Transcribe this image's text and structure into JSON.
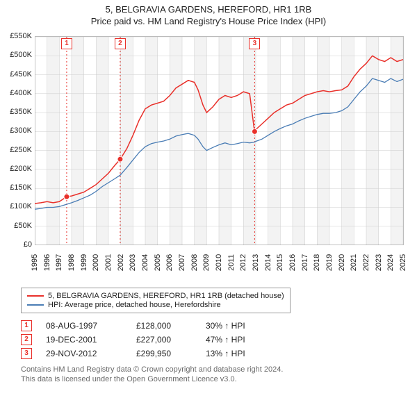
{
  "title": "5, BELGRAVIA GARDENS, HEREFORD, HR1 1RB",
  "subtitle": "Price paid vs. HM Land Registry's House Price Index (HPI)",
  "chart": {
    "type": "line",
    "background_color": "#ffffff",
    "grid_color": "#cccccc",
    "plot_border_color": "#bbbbbb",
    "ylim": [
      0,
      550
    ],
    "ytick_step": 50,
    "y_tick_labels": [
      "£0",
      "£50K",
      "£100K",
      "£150K",
      "£200K",
      "£250K",
      "£300K",
      "£350K",
      "£400K",
      "£450K",
      "£500K",
      "£550K"
    ],
    "xlim": [
      1995,
      2025
    ],
    "x_tick_labels": [
      "1995",
      "1996",
      "1997",
      "1998",
      "1999",
      "2000",
      "2001",
      "2002",
      "2003",
      "2004",
      "2005",
      "2006",
      "2007",
      "2008",
      "2009",
      "2010",
      "2011",
      "2012",
      "2013",
      "2014",
      "2015",
      "2016",
      "2017",
      "2018",
      "2019",
      "2020",
      "2021",
      "2022",
      "2023",
      "2024",
      "2025"
    ],
    "label_fontsize": 11,
    "title_fontsize": 13,
    "series": [
      {
        "name": "property",
        "label": "5, BELGRAVIA GARDENS, HEREFORD, HR1 1RB (detached house)",
        "color": "#e9302a",
        "line_width": 1.5,
        "data": [
          [
            1995.0,
            110
          ],
          [
            1995.5,
            112
          ],
          [
            1996.0,
            115
          ],
          [
            1996.5,
            112
          ],
          [
            1997.0,
            115
          ],
          [
            1997.6,
            128
          ],
          [
            1998.0,
            130
          ],
          [
            1998.5,
            135
          ],
          [
            1999.0,
            140
          ],
          [
            1999.5,
            150
          ],
          [
            2000.0,
            160
          ],
          [
            2000.5,
            175
          ],
          [
            2001.0,
            190
          ],
          [
            2001.5,
            210
          ],
          [
            2001.96,
            227
          ],
          [
            2002.5,
            255
          ],
          [
            2003.0,
            290
          ],
          [
            2003.5,
            330
          ],
          [
            2004.0,
            360
          ],
          [
            2004.5,
            370
          ],
          [
            2005.0,
            375
          ],
          [
            2005.5,
            380
          ],
          [
            2006.0,
            395
          ],
          [
            2006.5,
            415
          ],
          [
            2007.0,
            425
          ],
          [
            2007.5,
            435
          ],
          [
            2008.0,
            430
          ],
          [
            2008.3,
            410
          ],
          [
            2008.7,
            370
          ],
          [
            2009.0,
            350
          ],
          [
            2009.5,
            365
          ],
          [
            2010.0,
            385
          ],
          [
            2010.5,
            395
          ],
          [
            2011.0,
            390
          ],
          [
            2011.5,
            395
          ],
          [
            2012.0,
            405
          ],
          [
            2012.5,
            400
          ],
          [
            2012.9,
            300
          ],
          [
            2013.0,
            305
          ],
          [
            2013.5,
            320
          ],
          [
            2014.0,
            335
          ],
          [
            2014.5,
            350
          ],
          [
            2015.0,
            360
          ],
          [
            2015.5,
            370
          ],
          [
            2016.0,
            375
          ],
          [
            2016.5,
            385
          ],
          [
            2017.0,
            395
          ],
          [
            2017.5,
            400
          ],
          [
            2018.0,
            405
          ],
          [
            2018.5,
            408
          ],
          [
            2019.0,
            405
          ],
          [
            2019.5,
            408
          ],
          [
            2020.0,
            410
          ],
          [
            2020.5,
            420
          ],
          [
            2021.0,
            445
          ],
          [
            2021.5,
            465
          ],
          [
            2022.0,
            480
          ],
          [
            2022.5,
            500
          ],
          [
            2023.0,
            490
          ],
          [
            2023.5,
            485
          ],
          [
            2024.0,
            495
          ],
          [
            2024.5,
            485
          ],
          [
            2025.0,
            490
          ]
        ]
      },
      {
        "name": "hpi",
        "label": "HPI: Average price, detached house, Herefordshire",
        "color": "#4a7db5",
        "line_width": 1.3,
        "data": [
          [
            1995.0,
            95
          ],
          [
            1995.5,
            97
          ],
          [
            1996.0,
            100
          ],
          [
            1996.5,
            100
          ],
          [
            1997.0,
            102
          ],
          [
            1997.6,
            108
          ],
          [
            1998.0,
            112
          ],
          [
            1998.5,
            118
          ],
          [
            1999.0,
            125
          ],
          [
            1999.5,
            132
          ],
          [
            2000.0,
            142
          ],
          [
            2000.5,
            155
          ],
          [
            2001.0,
            165
          ],
          [
            2001.5,
            175
          ],
          [
            2001.96,
            185
          ],
          [
            2002.5,
            205
          ],
          [
            2003.0,
            225
          ],
          [
            2003.5,
            245
          ],
          [
            2004.0,
            260
          ],
          [
            2004.5,
            268
          ],
          [
            2005.0,
            272
          ],
          [
            2005.5,
            275
          ],
          [
            2006.0,
            280
          ],
          [
            2006.5,
            288
          ],
          [
            2007.0,
            292
          ],
          [
            2007.5,
            295
          ],
          [
            2008.0,
            290
          ],
          [
            2008.3,
            280
          ],
          [
            2008.7,
            260
          ],
          [
            2009.0,
            250
          ],
          [
            2009.5,
            258
          ],
          [
            2010.0,
            265
          ],
          [
            2010.5,
            270
          ],
          [
            2011.0,
            265
          ],
          [
            2011.5,
            268
          ],
          [
            2012.0,
            272
          ],
          [
            2012.5,
            270
          ],
          [
            2012.9,
            272
          ],
          [
            2013.0,
            274
          ],
          [
            2013.5,
            280
          ],
          [
            2014.0,
            290
          ],
          [
            2014.5,
            300
          ],
          [
            2015.0,
            308
          ],
          [
            2015.5,
            315
          ],
          [
            2016.0,
            320
          ],
          [
            2016.5,
            328
          ],
          [
            2017.0,
            335
          ],
          [
            2017.5,
            340
          ],
          [
            2018.0,
            345
          ],
          [
            2018.5,
            348
          ],
          [
            2019.0,
            348
          ],
          [
            2019.5,
            350
          ],
          [
            2020.0,
            355
          ],
          [
            2020.5,
            365
          ],
          [
            2021.0,
            385
          ],
          [
            2021.5,
            405
          ],
          [
            2022.0,
            420
          ],
          [
            2022.5,
            440
          ],
          [
            2023.0,
            435
          ],
          [
            2023.5,
            430
          ],
          [
            2024.0,
            440
          ],
          [
            2024.5,
            432
          ],
          [
            2025.0,
            438
          ]
        ]
      }
    ],
    "sale_markers": [
      {
        "n": "1",
        "x": 1997.6,
        "y": 128
      },
      {
        "n": "2",
        "x": 2001.96,
        "y": 227
      },
      {
        "n": "3",
        "x": 2012.91,
        "y": 300
      }
    ],
    "marker_line_color": "#e9302a",
    "marker_point_color": "#e9302a",
    "marker_box_border": "#e9302a"
  },
  "legend": {
    "border_color": "#999999",
    "fontsize": 11
  },
  "sales": [
    {
      "n": "1",
      "date": "08-AUG-1997",
      "price": "£128,000",
      "pct": "30% ↑ HPI"
    },
    {
      "n": "2",
      "date": "19-DEC-2001",
      "price": "£227,000",
      "pct": "47% ↑ HPI"
    },
    {
      "n": "3",
      "date": "29-NOV-2012",
      "price": "£299,950",
      "pct": "13% ↑ HPI"
    }
  ],
  "footnote_line1": "Contains HM Land Registry data © Crown copyright and database right 2024.",
  "footnote_line2": "This data is licensed under the Open Government Licence v3.0."
}
